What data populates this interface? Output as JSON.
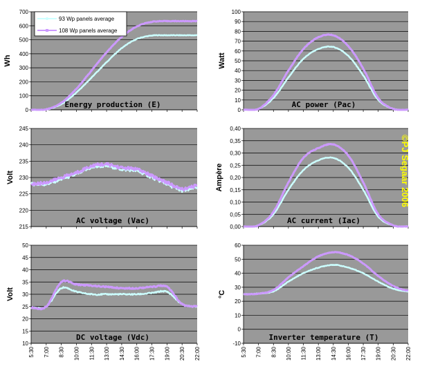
{
  "copyright": "©PJ Segaar 2006",
  "colors": {
    "plot_bg": "#999999",
    "s93": "#ccffff",
    "s108": "#cc99ff",
    "grid": "#000000"
  },
  "legend": {
    "s93": "93 Wp panels average",
    "s108": "108 Wp panels average"
  },
  "x_ticks": [
    "5:30",
    "7:00",
    "8:30",
    "10:00",
    "11:30",
    "13:00",
    "14:30",
    "16:00",
    "17:30",
    "19:00",
    "20:30",
    "22:00"
  ],
  "chart_data": [
    {
      "id": "energy",
      "type": "line",
      "title": "Energy production (E)",
      "ylabel": "Wh",
      "ylim": [
        0,
        700
      ],
      "ystep": 100,
      "yticks": [
        "0",
        "100",
        "200",
        "300",
        "400",
        "500",
        "600",
        "700"
      ],
      "x": [
        "5:30",
        "7:00",
        "8:30",
        "10:00",
        "11:30",
        "13:00",
        "14:30",
        "16:00",
        "17:30",
        "19:00",
        "20:30",
        "22:00"
      ],
      "series": [
        {
          "name": "93 Wp panels average",
          "values": [
            0,
            3,
            40,
            125,
            230,
            340,
            440,
            505,
            530,
            532,
            532,
            532
          ]
        },
        {
          "name": "108 Wp panels average",
          "values": [
            0,
            4,
            50,
            150,
            280,
            410,
            520,
            595,
            628,
            633,
            633,
            633
          ]
        }
      ],
      "legend": "top-left"
    },
    {
      "id": "power",
      "type": "line",
      "title": "AC power (Pac)",
      "ylabel": "Watt",
      "ylim": [
        0,
        100
      ],
      "ystep": 10,
      "yticks": [
        "0",
        "10",
        "20",
        "30",
        "40",
        "50",
        "60",
        "70",
        "80",
        "90",
        "100"
      ],
      "x": [
        "5:30",
        "7:00",
        "8:30",
        "10:00",
        "11:30",
        "13:00",
        "14:30",
        "16:00",
        "17:30",
        "19:00",
        "20:30",
        "22:00"
      ],
      "series": [
        {
          "name": "93 Wp panels average",
          "values": [
            0,
            1,
            12,
            33,
            52,
            62,
            64,
            55,
            35,
            10,
            1,
            0
          ]
        },
        {
          "name": "108 Wp panels average",
          "values": [
            0,
            1,
            15,
            40,
            62,
            74,
            76,
            65,
            42,
            12,
            1,
            0
          ]
        }
      ]
    },
    {
      "id": "vac",
      "type": "line",
      "title": "AC voltage (Vac)",
      "ylabel": "Volt",
      "ylim": [
        215,
        245
      ],
      "ystep": 5,
      "yticks": [
        "215",
        "220",
        "225",
        "230",
        "235",
        "240",
        "245"
      ],
      "x": [
        "5:30",
        "7:00",
        "8:30",
        "10:00",
        "11:30",
        "13:00",
        "14:30",
        "16:00",
        "17:30",
        "19:00",
        "20:30",
        "22:00"
      ],
      "series": [
        {
          "name": "93 Wp panels average",
          "values": [
            228,
            228,
            229.5,
            231,
            233,
            233.5,
            232.5,
            232,
            230,
            228,
            226,
            227
          ]
        },
        {
          "name": "108 Wp panels average",
          "values": [
            228,
            228.5,
            230,
            231.5,
            233.5,
            234,
            233,
            232.5,
            230.5,
            228.5,
            226.5,
            227.5
          ]
        }
      ]
    },
    {
      "id": "iac",
      "type": "line",
      "title": "AC current (Iac)",
      "ylabel": "Ampère",
      "ylim": [
        0,
        0.4
      ],
      "ystep": 0.05,
      "yticks": [
        "0,00",
        "0,05",
        "0,10",
        "0,15",
        "0,20",
        "0,25",
        "0,30",
        "0,35",
        "0,40"
      ],
      "x": [
        "5:30",
        "7:00",
        "8:30",
        "10:00",
        "11:30",
        "13:00",
        "14:30",
        "16:00",
        "17:30",
        "19:00",
        "20:30",
        "22:00"
      ],
      "series": [
        {
          "name": "93 Wp panels average",
          "values": [
            0,
            0.005,
            0.05,
            0.15,
            0.23,
            0.27,
            0.28,
            0.24,
            0.15,
            0.04,
            0.005,
            0
          ]
        },
        {
          "name": "108 Wp panels average",
          "values": [
            0,
            0.005,
            0.06,
            0.18,
            0.28,
            0.32,
            0.335,
            0.29,
            0.18,
            0.05,
            0.005,
            0
          ]
        }
      ]
    },
    {
      "id": "vdc",
      "type": "line",
      "title": "DC voltage (Vdc)",
      "ylabel": "Volt",
      "ylim": [
        10,
        50
      ],
      "ystep": 5,
      "yticks": [
        "10",
        "15",
        "20",
        "25",
        "30",
        "35",
        "40",
        "45",
        "50"
      ],
      "x": [
        "5:30",
        "7:00",
        "8:30",
        "10:00",
        "11:30",
        "13:00",
        "14:30",
        "16:00",
        "17:30",
        "19:00",
        "20:30",
        "22:00"
      ],
      "series": [
        {
          "name": "93 Wp panels average",
          "values": [
            24.5,
            25,
            32.5,
            31,
            30,
            30,
            30,
            30,
            30.5,
            31,
            26,
            25
          ]
        },
        {
          "name": "108 Wp panels average",
          "values": [
            24.5,
            25,
            35,
            34,
            33.5,
            33,
            32.5,
            32.5,
            33,
            33,
            26,
            25
          ]
        }
      ]
    },
    {
      "id": "temp",
      "type": "line",
      "title": "Inverter temperature (T)",
      "ylabel": "°C",
      "ylim": [
        -10,
        60
      ],
      "ystep": 10,
      "yticks": [
        "-10",
        "0",
        "10",
        "20",
        "30",
        "40",
        "50",
        "60"
      ],
      "x": [
        "5:30",
        "7:00",
        "8:30",
        "10:00",
        "11:30",
        "13:00",
        "14:30",
        "16:00",
        "17:30",
        "19:00",
        "20:30",
        "22:00"
      ],
      "series": [
        {
          "name": "93 Wp panels average",
          "values": [
            25,
            25.5,
            27,
            34,
            40,
            44,
            46,
            44,
            40,
            34,
            29,
            27
          ]
        },
        {
          "name": "108 Wp panels average",
          "values": [
            25,
            25.5,
            28,
            37,
            45,
            52,
            55,
            53,
            47,
            38,
            31,
            27.5
          ]
        }
      ]
    }
  ]
}
